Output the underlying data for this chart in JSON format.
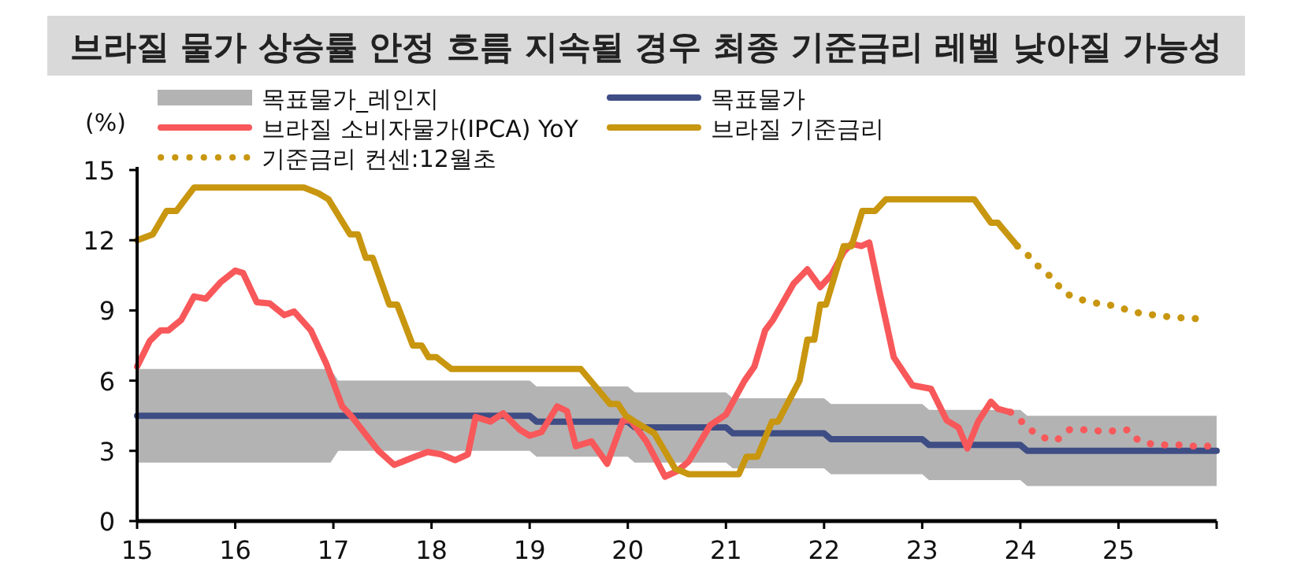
{
  "chart_data": {
    "type": "line",
    "title": "브라질 물가 상승률 안정 흐름 지속될 경우 최종 기준금리 레벨 낮아질 가능성",
    "ylabel": "(%)",
    "xlim": [
      15,
      26
    ],
    "xticks": [
      15,
      16,
      17,
      18,
      19,
      20,
      21,
      22,
      23,
      24,
      25
    ],
    "ylim": [
      0,
      15
    ],
    "yticks": [
      0,
      3,
      6,
      9,
      12,
      15
    ],
    "grid": false,
    "legend": "top",
    "marker": "none",
    "series": [
      {
        "name": "목표물가_레인지",
        "type": "area",
        "color": "#b3b3b3"
      },
      {
        "name": "목표물가",
        "color": "#3f4d85",
        "line_style": "solid",
        "x": [
          15,
          16.97,
          17.05,
          19.0,
          19.07,
          20.0,
          20.07,
          21.0,
          21.07,
          22.0,
          22.07,
          23.0,
          23.07,
          24.0,
          24.07,
          26
        ],
        "values": [
          4.5,
          4.5,
          4.5,
          4.5,
          4.25,
          4.25,
          4.0,
          4.0,
          3.75,
          3.75,
          3.5,
          3.5,
          3.25,
          3.25,
          3.0,
          3.0
        ],
        "lower": [
          2.5,
          2.5,
          3.0,
          3.0,
          2.75,
          2.75,
          2.5,
          2.5,
          2.25,
          2.25,
          2.0,
          2.0,
          1.75,
          1.75,
          1.5,
          1.5
        ],
        "upper": [
          6.5,
          6.5,
          6.0,
          6.0,
          5.75,
          5.75,
          5.5,
          5.5,
          5.25,
          5.25,
          5.0,
          5.0,
          4.75,
          4.75,
          4.5,
          4.5
        ]
      },
      {
        "name": "브라질 소비자물가(IPCA) YoY",
        "color": "#f8585a",
        "line_style": "solid",
        "x": [
          15.0,
          15.13,
          15.24,
          15.32,
          15.45,
          15.58,
          15.7,
          15.85,
          16.0,
          16.08,
          16.22,
          16.35,
          16.5,
          16.6,
          16.77,
          16.93,
          17.09,
          17.19,
          17.46,
          17.62,
          17.83,
          17.96,
          18.1,
          18.24,
          18.37,
          18.45,
          18.6,
          18.73,
          18.9,
          19.0,
          19.12,
          19.28,
          19.38,
          19.47,
          19.63,
          19.79,
          19.95,
          20.03,
          20.19,
          20.38,
          20.51,
          20.62,
          20.84,
          21.0,
          21.19,
          21.29,
          21.4,
          21.48,
          21.69,
          21.83,
          21.96,
          22.07,
          22.2,
          22.28,
          22.38,
          22.46,
          22.57,
          22.71,
          22.9,
          23.09,
          23.25,
          23.37,
          23.46,
          23.57,
          23.7,
          23.77,
          23.9
        ],
        "values": [
          6.6,
          7.7,
          8.15,
          8.15,
          8.6,
          9.6,
          9.5,
          10.2,
          10.7,
          10.6,
          9.35,
          9.3,
          8.8,
          8.95,
          8.15,
          6.7,
          4.9,
          4.45,
          3.0,
          2.4,
          2.75,
          2.95,
          2.85,
          2.6,
          2.85,
          4.45,
          4.25,
          4.6,
          3.9,
          3.65,
          3.8,
          4.9,
          4.7,
          3.2,
          3.4,
          2.45,
          4.3,
          4.3,
          3.4,
          1.9,
          2.15,
          2.55,
          4.1,
          4.55,
          6.0,
          6.6,
          8.15,
          8.6,
          10.15,
          10.75,
          10.0,
          10.5,
          11.5,
          11.85,
          11.75,
          11.9,
          9.7,
          7.0,
          5.8,
          5.65,
          4.3,
          4.0,
          3.1,
          4.25,
          5.1,
          4.8,
          4.65
        ]
      },
      {
        "color": "#f8585a",
        "line_style": "dotted",
        "x": [
          23.9,
          24.0,
          24.12,
          24.25,
          24.37,
          24.5,
          24.65,
          24.8,
          24.95,
          25.1,
          25.2,
          25.33,
          25.48,
          25.63,
          25.77,
          25.93
        ],
        "values": [
          4.65,
          4.3,
          3.85,
          3.55,
          3.45,
          3.9,
          3.9,
          3.85,
          3.85,
          3.9,
          3.45,
          3.3,
          3.25,
          3.25,
          3.2,
          3.2
        ]
      },
      {
        "name": "브라질 기준금리",
        "color": "#c8960f",
        "line_style": "solid",
        "x": [
          15.0,
          15.16,
          15.3,
          15.4,
          15.58,
          16.7,
          16.85,
          16.95,
          17.17,
          17.25,
          17.33,
          17.4,
          17.57,
          17.65,
          17.81,
          17.9,
          17.97,
          18.05,
          18.2,
          19.52,
          19.82,
          19.9,
          19.98,
          20.07,
          20.27,
          20.48,
          20.62,
          21.13,
          21.21,
          21.32,
          21.47,
          21.53,
          21.75,
          21.83,
          21.9,
          21.96,
          22.02,
          22.2,
          22.28,
          22.39,
          22.52,
          22.63,
          23.53,
          23.7,
          23.77,
          23.97
        ],
        "values": [
          12.0,
          12.25,
          13.25,
          13.25,
          14.25,
          14.25,
          14.0,
          13.75,
          12.25,
          12.25,
          11.25,
          11.25,
          9.25,
          9.25,
          7.5,
          7.5,
          7.0,
          7.0,
          6.5,
          6.5,
          5.0,
          5.0,
          4.5,
          4.25,
          3.75,
          2.25,
          2.0,
          2.0,
          2.75,
          2.75,
          4.25,
          4.25,
          6.0,
          7.75,
          7.75,
          9.25,
          9.25,
          11.75,
          11.75,
          13.25,
          13.25,
          13.75,
          13.75,
          12.75,
          12.75,
          11.75
        ]
      },
      {
        "name": "기준금리 컨센:12월초",
        "color": "#c8960f",
        "line_style": "dotted",
        "x": [
          23.97,
          24.08,
          24.18,
          24.32,
          24.45,
          24.58,
          24.73,
          24.85,
          24.97,
          25.1,
          25.2,
          25.37,
          25.46,
          25.6,
          25.72,
          25.87
        ],
        "values": [
          11.75,
          11.35,
          10.9,
          10.4,
          9.75,
          9.5,
          9.35,
          9.25,
          9.2,
          9.0,
          8.9,
          8.8,
          8.75,
          8.7,
          8.65,
          8.65
        ]
      }
    ]
  }
}
